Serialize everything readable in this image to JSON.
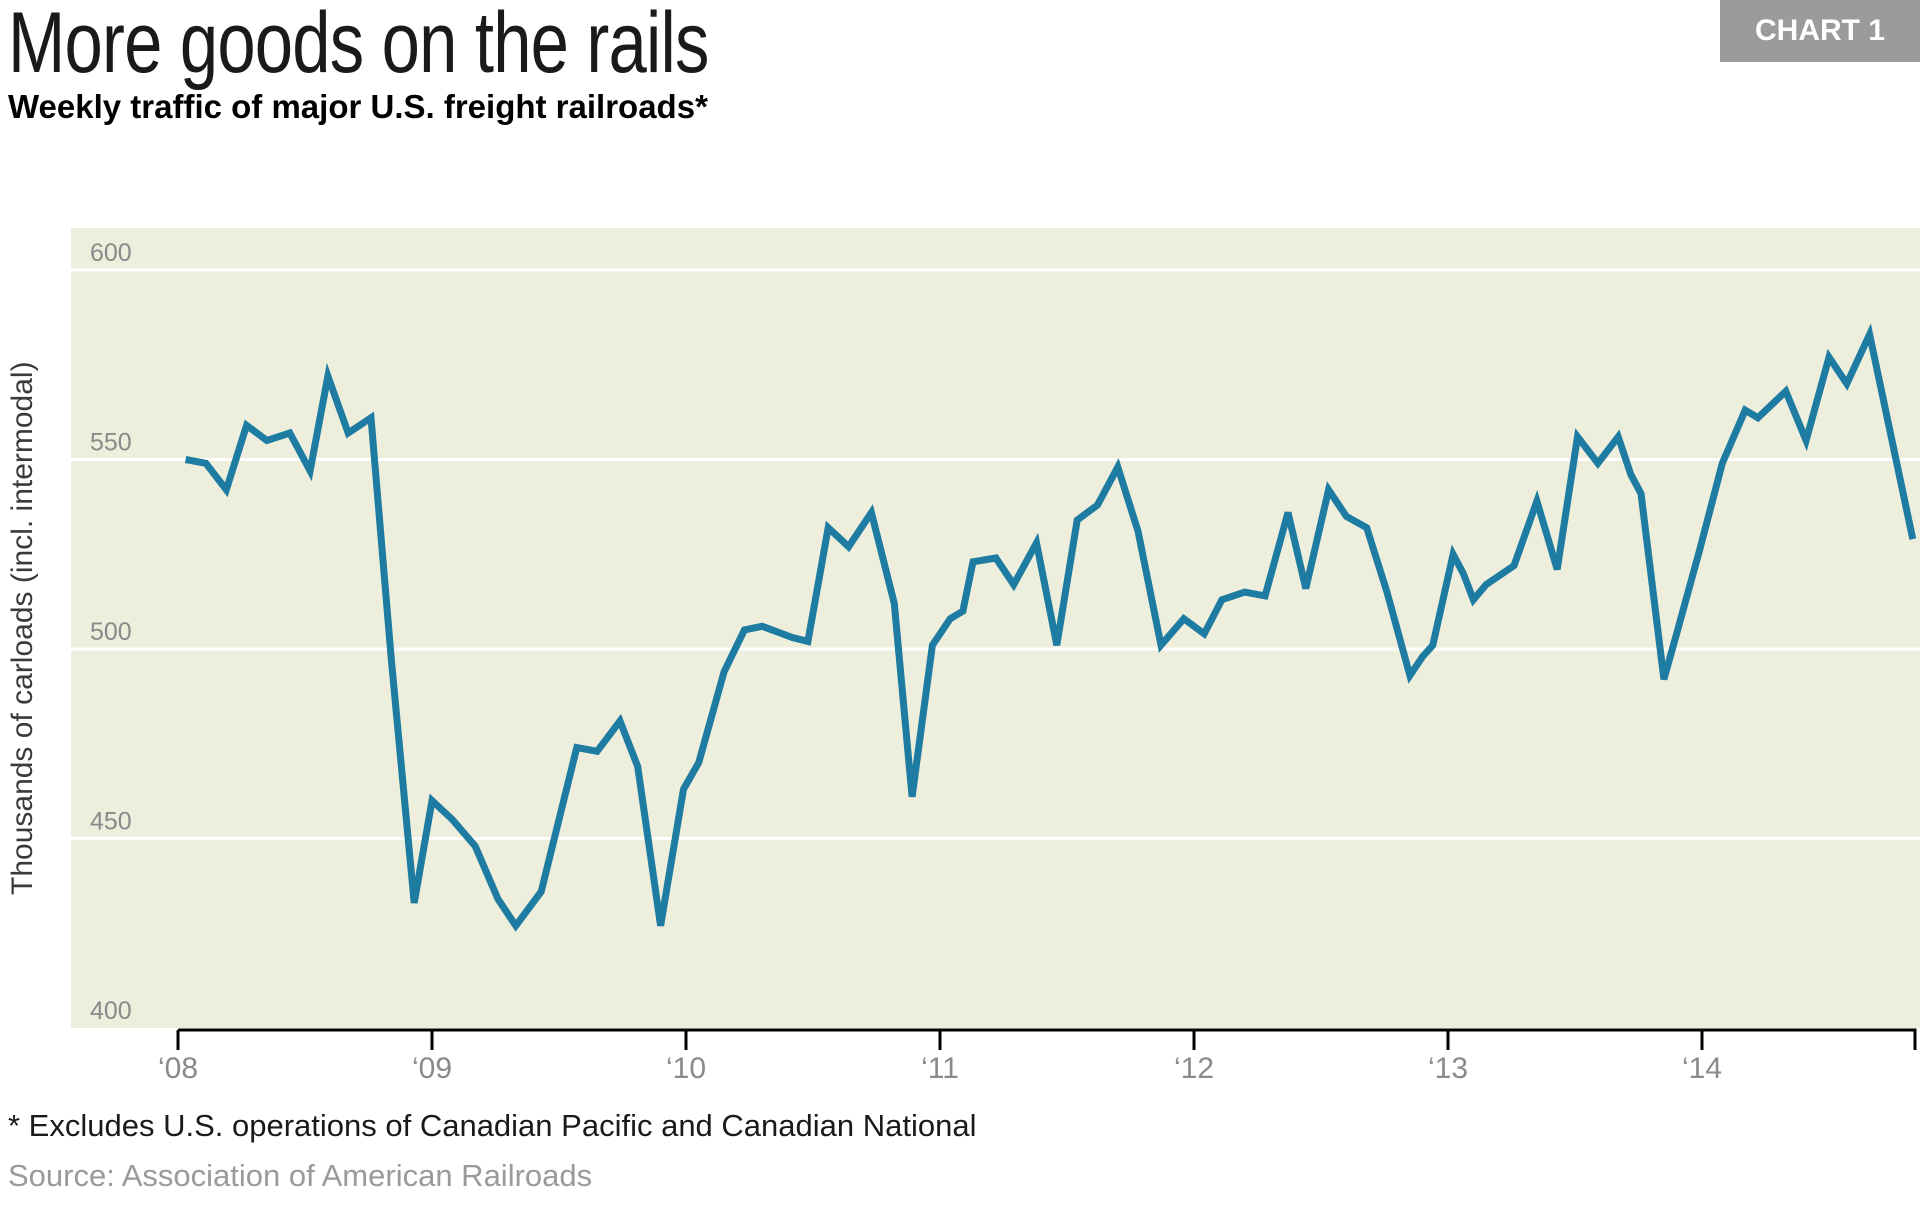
{
  "header": {
    "title": "More goods on the rails",
    "subtitle": "Weekly traffic of major U.S. freight railroads*",
    "badge": "CHART 1"
  },
  "footnote": "* Excludes U.S. operations of Canadian Pacific and Canadian National",
  "source": "Source: Association of American Railroads",
  "colors": {
    "line": "#1e7ba1",
    "plot_background": "#edeedc",
    "gridline": "#ffffff",
    "axis": "#000000",
    "tick_label": "#8a8a8a",
    "badge_background": "#9b9b9b",
    "badge_text": "#ffffff",
    "y_axis_title": "#3a3a3a"
  },
  "chart_data": {
    "type": "line",
    "title": "More goods on the rails",
    "subtitle": "Weekly traffic of major U.S. freight railroads*",
    "xlabel": "",
    "ylabel": "Thousands of carloads (incl. intermodal)",
    "grid": true,
    "legend_position": "none",
    "ylim": [
      400,
      611
    ],
    "xlim": [
      2008,
      2014.85
    ],
    "y_ticks": [
      400,
      450,
      500,
      550,
      600
    ],
    "x_ticks": [
      {
        "year": 2008,
        "label": "‘08"
      },
      {
        "year": 2009,
        "label": "‘09"
      },
      {
        "year": 2010,
        "label": "‘10"
      },
      {
        "year": 2011,
        "label": "‘11"
      },
      {
        "year": 2012,
        "label": "‘12"
      },
      {
        "year": 2013,
        "label": "‘13"
      },
      {
        "year": 2014,
        "label": "‘14"
      }
    ],
    "series": [
      {
        "name": "Weekly traffic",
        "points": [
          [
            2008.03,
            550
          ],
          [
            2008.11,
            549
          ],
          [
            2008.19,
            542
          ],
          [
            2008.27,
            559
          ],
          [
            2008.35,
            555
          ],
          [
            2008.44,
            557
          ],
          [
            2008.52,
            547
          ],
          [
            2008.59,
            572
          ],
          [
            2008.67,
            557
          ],
          [
            2008.76,
            561
          ],
          [
            2008.84,
            497
          ],
          [
            2008.93,
            433
          ],
          [
            2009.0,
            460
          ],
          [
            2009.08,
            455
          ],
          [
            2009.17,
            448
          ],
          [
            2009.26,
            434
          ],
          [
            2009.33,
            427
          ],
          [
            2009.43,
            436
          ],
          [
            2009.5,
            455
          ],
          [
            2009.57,
            474
          ],
          [
            2009.65,
            473
          ],
          [
            2009.74,
            481
          ],
          [
            2009.81,
            469
          ],
          [
            2009.9,
            427
          ],
          [
            2009.99,
            463
          ],
          [
            2010.05,
            470
          ],
          [
            2010.15,
            494
          ],
          [
            2010.23,
            505
          ],
          [
            2010.3,
            506
          ],
          [
            2010.42,
            503
          ],
          [
            2010.48,
            502
          ],
          [
            2010.56,
            532
          ],
          [
            2010.64,
            527
          ],
          [
            2010.73,
            536
          ],
          [
            2010.82,
            512
          ],
          [
            2010.89,
            461
          ],
          [
            2010.97,
            501
          ],
          [
            2011.04,
            508
          ],
          [
            2011.09,
            510
          ],
          [
            2011.13,
            523
          ],
          [
            2011.22,
            524
          ],
          [
            2011.29,
            517
          ],
          [
            2011.38,
            528
          ],
          [
            2011.46,
            501
          ],
          [
            2011.54,
            534
          ],
          [
            2011.62,
            538
          ],
          [
            2011.7,
            548
          ],
          [
            2011.78,
            531
          ],
          [
            2011.87,
            501
          ],
          [
            2011.96,
            508
          ],
          [
            2012.04,
            504
          ],
          [
            2012.11,
            513
          ],
          [
            2012.2,
            515
          ],
          [
            2012.28,
            514
          ],
          [
            2012.37,
            536
          ],
          [
            2012.44,
            516
          ],
          [
            2012.53,
            542
          ],
          [
            2012.6,
            535
          ],
          [
            2012.68,
            532
          ],
          [
            2012.76,
            515
          ],
          [
            2012.85,
            493
          ],
          [
            2012.9,
            498
          ],
          [
            2012.94,
            501
          ],
          [
            2013.02,
            525
          ],
          [
            2013.06,
            520
          ],
          [
            2013.1,
            513
          ],
          [
            2013.15,
            517
          ],
          [
            2013.26,
            522
          ],
          [
            2013.35,
            539
          ],
          [
            2013.43,
            521
          ],
          [
            2013.51,
            556
          ],
          [
            2013.59,
            549
          ],
          [
            2013.67,
            556
          ],
          [
            2013.72,
            546
          ],
          [
            2013.76,
            541
          ],
          [
            2013.85,
            492
          ],
          [
            2013.9,
            504
          ],
          [
            2013.99,
            526
          ],
          [
            2014.08,
            549
          ],
          [
            2014.17,
            563
          ],
          [
            2014.22,
            561
          ],
          [
            2014.33,
            568
          ],
          [
            2014.41,
            555
          ],
          [
            2014.5,
            577
          ],
          [
            2014.57,
            570
          ],
          [
            2014.66,
            583
          ],
          [
            2014.83,
            529
          ]
        ]
      }
    ]
  }
}
